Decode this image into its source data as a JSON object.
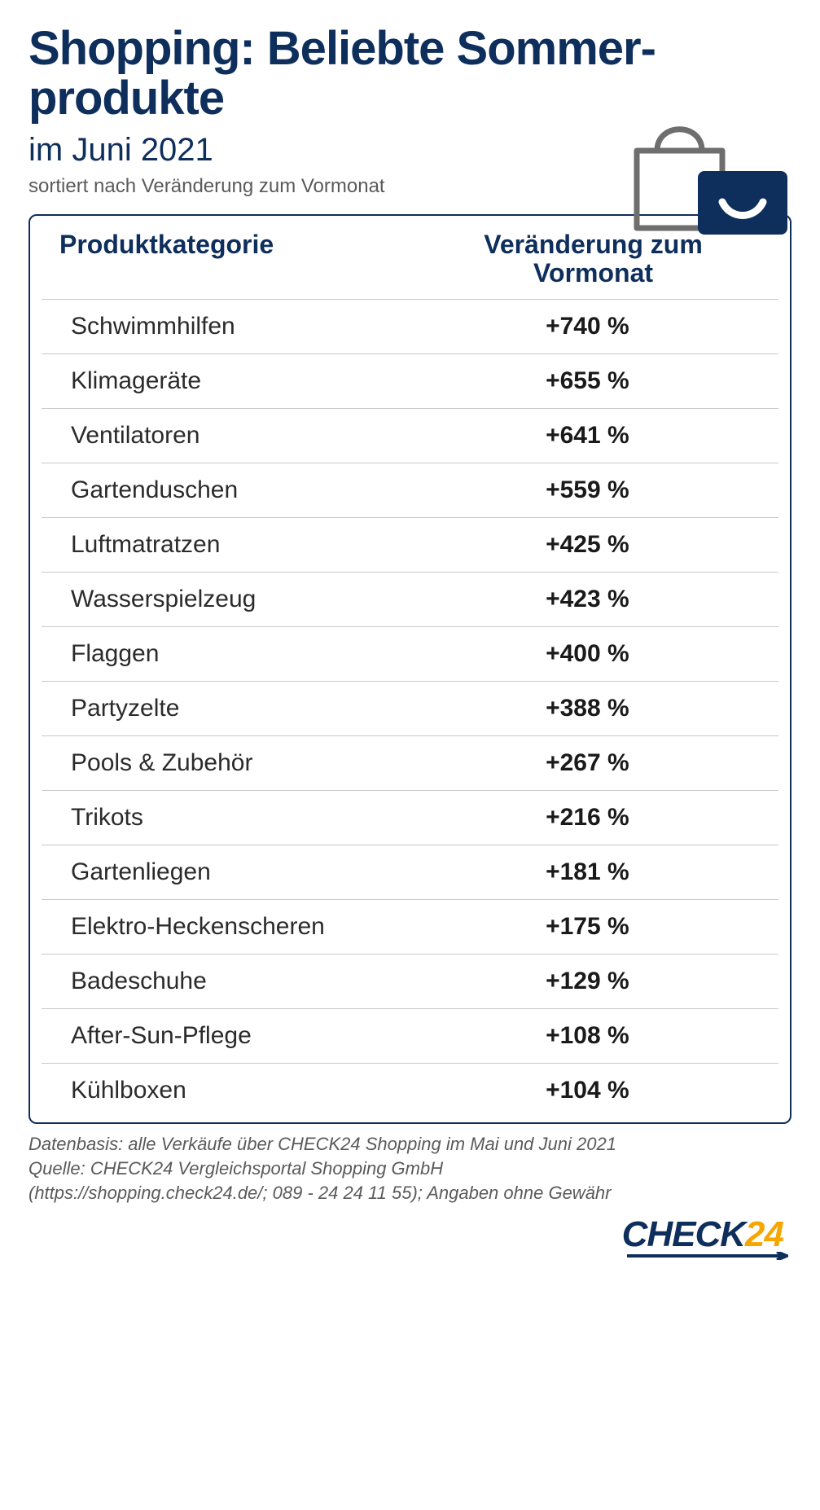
{
  "colors": {
    "brand_dark": "#0e2e5c",
    "brand_accent": "#f7a600",
    "text_body": "#2b2b2b",
    "text_muted": "#5a5a5a",
    "row_divider": "#c9c9c9",
    "background": "#ffffff",
    "icon_stroke": "#6e6e6e"
  },
  "typography": {
    "title_fontsize": 58,
    "subtitle_fontsize": 40,
    "sortnote_fontsize": 24,
    "header_fontsize": 32,
    "cell_fontsize": 30,
    "footer_fontsize": 22
  },
  "header": {
    "title": "Shopping: Beliebte Sommer­produkte",
    "subtitle": "im Juni 2021",
    "sort_note": "sortiert nach Veränderung zum Vormonat"
  },
  "table": {
    "type": "table",
    "columns": [
      {
        "key": "category",
        "label": "Produktkategorie",
        "align": "left"
      },
      {
        "key": "change",
        "label": "Veränderung zum Vormonat",
        "align": "center"
      }
    ],
    "rows": [
      {
        "category": "Schwimmhilfen",
        "change": "+740 %"
      },
      {
        "category": "Klimageräte",
        "change": "+655 %"
      },
      {
        "category": "Ventilatoren",
        "change": "+641 %"
      },
      {
        "category": "Gartenduschen",
        "change": "+559 %"
      },
      {
        "category": "Luftmatratzen",
        "change": "+425 %"
      },
      {
        "category": "Wasserspielzeug",
        "change": "+423 %"
      },
      {
        "category": "Flaggen",
        "change": "+400 %"
      },
      {
        "category": "Partyzelte",
        "change": "+388 %"
      },
      {
        "category": "Pools & Zubehör",
        "change": "+267 %"
      },
      {
        "category": "Trikots",
        "change": "+216 %"
      },
      {
        "category": "Gartenliegen",
        "change": "+181 %"
      },
      {
        "category": "Elektro-Heckenscheren",
        "change": "+175 %"
      },
      {
        "category": "Badeschuhe",
        "change": "+129 %"
      },
      {
        "category": "After-Sun-Pflege",
        "change": "+108 %"
      },
      {
        "category": "Kühlboxen",
        "change": "+104 %"
      }
    ]
  },
  "footer": {
    "line1": "Datenbasis: alle Verkäufe über CHECK24 Shopping im Mai und Juni 2021",
    "line2": "Quelle: CHECK24 Vergleichsportal Shopping GmbH",
    "line3": "(https://shopping.check24.de/; 089 - 24 24 11 55); Angaben ohne Gewähr"
  },
  "logo": {
    "part1": "CHECK",
    "part2": "24"
  }
}
